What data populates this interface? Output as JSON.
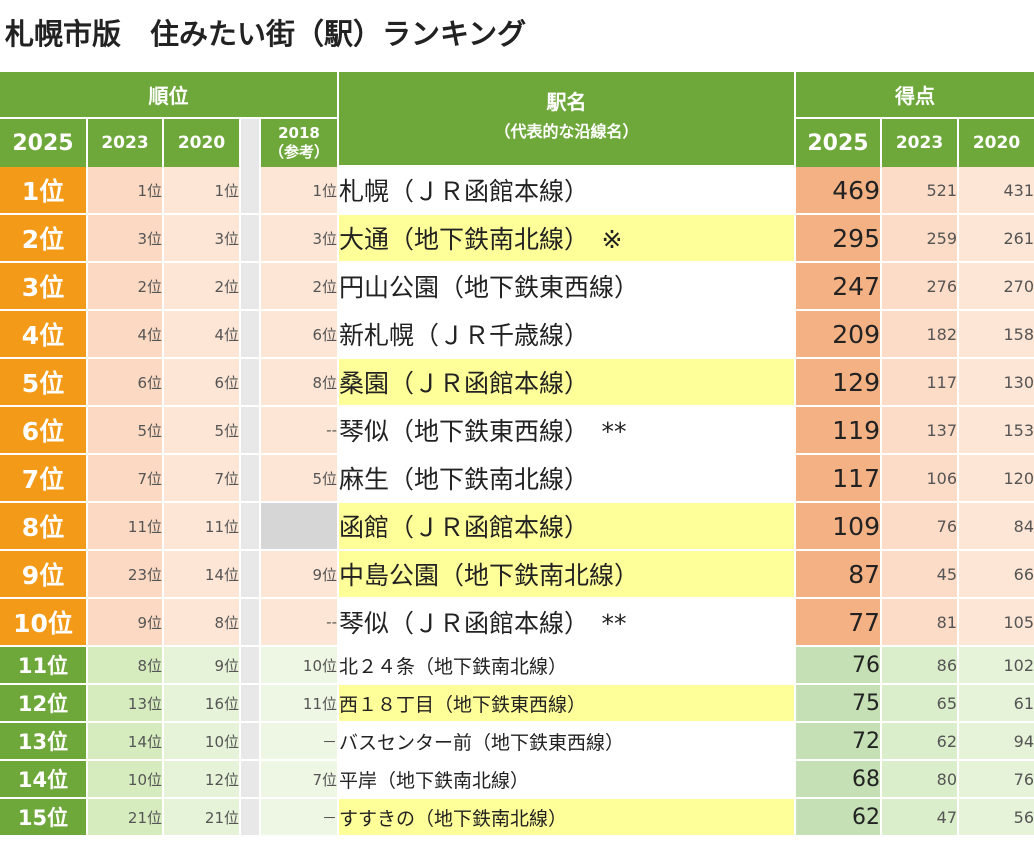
{
  "title": "札幌市版　住みたい街（駅）ランキング",
  "header": {
    "rank_group": "順位",
    "station_title": "駅名",
    "station_sub": "（代表的な沿線名）",
    "score_group": "得点",
    "y2025": "2025",
    "y2023": "2023",
    "y2020": "2020",
    "y2018": "2018",
    "ref_note": "（参考）"
  },
  "colors": {
    "header_green": "#6ea83a",
    "top_rank_orange": "#f39a19",
    "score_orange": "#f4b183",
    "score_green": "#c5e0b4",
    "highlight_yellow": "#ffff99"
  },
  "rows": [
    {
      "rank": "1位",
      "r2023": "1位",
      "r2020": "1位",
      "r2018": "1位",
      "station": "札幌（ＪＲ函館本線）",
      "s2025": "469",
      "s2023": "521",
      "s2020": "431",
      "highlight": false
    },
    {
      "rank": "2位",
      "r2023": "3位",
      "r2020": "3位",
      "r2018": "3位",
      "station": "大通（地下鉄南北線）　※",
      "s2025": "295",
      "s2023": "259",
      "s2020": "261",
      "highlight": true
    },
    {
      "rank": "3位",
      "r2023": "2位",
      "r2020": "2位",
      "r2018": "2位",
      "station": "円山公園（地下鉄東西線）",
      "s2025": "247",
      "s2023": "276",
      "s2020": "270",
      "highlight": false
    },
    {
      "rank": "4位",
      "r2023": "4位",
      "r2020": "4位",
      "r2018": "6位",
      "station": "新札幌（ＪＲ千歳線）",
      "s2025": "209",
      "s2023": "182",
      "s2020": "158",
      "highlight": false
    },
    {
      "rank": "5位",
      "r2023": "6位",
      "r2020": "6位",
      "r2018": "8位",
      "station": "桑園（ＪＲ函館本線）",
      "s2025": "129",
      "s2023": "117",
      "s2020": "130",
      "highlight": true
    },
    {
      "rank": "6位",
      "r2023": "5位",
      "r2020": "5位",
      "r2018": "--",
      "station": "琴似（地下鉄東西線）　**",
      "s2025": "119",
      "s2023": "137",
      "s2020": "153",
      "highlight": false
    },
    {
      "rank": "7位",
      "r2023": "7位",
      "r2020": "7位",
      "r2018": "5位",
      "station": "麻生（地下鉄南北線）",
      "s2025": "117",
      "s2023": "106",
      "s2020": "120",
      "highlight": false
    },
    {
      "rank": "8位",
      "r2023": "11位",
      "r2020": "11位",
      "r2018": "",
      "station": "函館（ＪＲ函館本線）",
      "s2025": "109",
      "s2023": "76",
      "s2020": "84",
      "highlight": true
    },
    {
      "rank": "9位",
      "r2023": "23位",
      "r2020": "14位",
      "r2018": "9位",
      "station": "中島公園（地下鉄南北線）",
      "s2025": "87",
      "s2023": "45",
      "s2020": "66",
      "highlight": true
    },
    {
      "rank": "10位",
      "r2023": "9位",
      "r2020": "8位",
      "r2018": "--",
      "station": "琴似（ＪＲ函館本線）　**",
      "s2025": "77",
      "s2023": "81",
      "s2020": "105",
      "highlight": false
    },
    {
      "rank": "11位",
      "r2023": "8位",
      "r2020": "9位",
      "r2018": "10位",
      "station": "北２４条（地下鉄南北線）",
      "s2025": "76",
      "s2023": "86",
      "s2020": "102",
      "highlight": false
    },
    {
      "rank": "12位",
      "r2023": "13位",
      "r2020": "16位",
      "r2018": "11位",
      "station": "西１８丁目（地下鉄東西線）",
      "s2025": "75",
      "s2023": "65",
      "s2020": "61",
      "highlight": true
    },
    {
      "rank": "13位",
      "r2023": "14位",
      "r2020": "10位",
      "r2018": "－",
      "station": "バスセンター前（地下鉄東西線）",
      "s2025": "72",
      "s2023": "62",
      "s2020": "94",
      "highlight": false
    },
    {
      "rank": "14位",
      "r2023": "10位",
      "r2020": "12位",
      "r2018": "7位",
      "station": "平岸（地下鉄南北線）",
      "s2025": "68",
      "s2023": "80",
      "s2020": "76",
      "highlight": false
    },
    {
      "rank": "15位",
      "r2023": "21位",
      "r2020": "21位",
      "r2018": "－",
      "station": "すすきの（地下鉄南北線）",
      "s2025": "62",
      "s2023": "47",
      "s2020": "56",
      "highlight": true
    }
  ]
}
